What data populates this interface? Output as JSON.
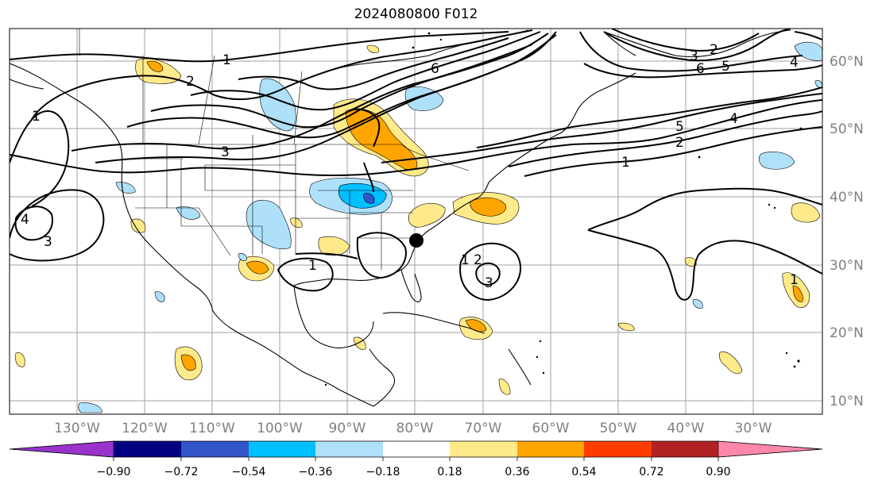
{
  "title": "2024080800 F012",
  "map": {
    "longitude_labels": [
      "130°W",
      "120°W",
      "110°W",
      "100°W",
      "90°W",
      "80°W",
      "70°W",
      "60°W",
      "50°W",
      "40°W",
      "30°W"
    ],
    "latitude_labels": [
      "60°N",
      "50°N",
      "40°N",
      "30°N",
      "20°N",
      "10°N"
    ],
    "contour_labels": [
      "1",
      "2",
      "3",
      "4",
      "5",
      "6"
    ],
    "marker": "black-dot"
  },
  "colorbar": {
    "tick_labels": [
      "−0.90",
      "−0.72",
      "−0.54",
      "−0.36",
      "−0.18",
      "0.18",
      "0.36",
      "0.54",
      "0.72",
      "0.90"
    ],
    "colors": [
      "#9933cc",
      "#000080",
      "#3355cc",
      "#00bfff",
      "#aee0fa",
      "#ffffff",
      "#ffea8a",
      "#ffa500",
      "#ff3c00",
      "#b22222",
      "#ff88aa"
    ]
  }
}
